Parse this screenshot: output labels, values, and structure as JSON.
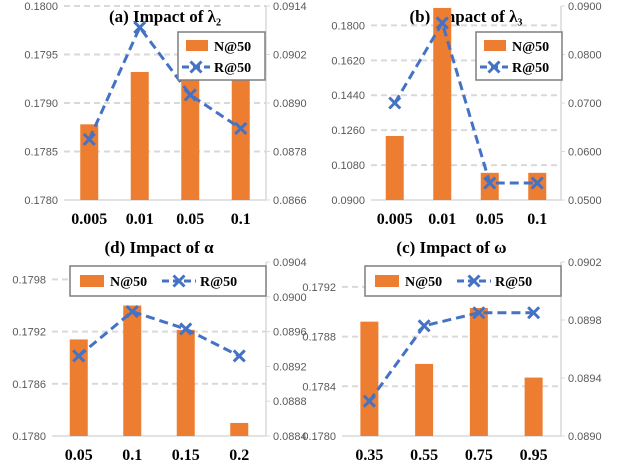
{
  "chart_data": [
    {
      "type": "bar",
      "title": "(a) Impact of λ₂",
      "categories": [
        "0.005",
        "0.01",
        "0.05",
        "0.1"
      ],
      "series": [
        {
          "name": "N@50",
          "axis": "left",
          "type": "bar",
          "values": [
            0.17878,
            0.17932,
            0.17951,
            0.17951
          ]
        },
        {
          "name": "R@50",
          "axis": "right",
          "type": "line",
          "values": [
            0.0881,
            0.09087,
            0.0892,
            0.08837
          ]
        }
      ],
      "ylim": [
        0.178,
        0.18
      ],
      "yticks": [
        "0.1780",
        "0.1785",
        "0.1790",
        "0.1795",
        "0.1800"
      ],
      "y2lim": [
        0.0866,
        0.0914
      ],
      "y2ticks": [
        "0.0866",
        "0.0878",
        "0.0890",
        "0.0902",
        "0.0914"
      ],
      "legend": "top-right",
      "grid": true
    },
    {
      "type": "bar",
      "title": "(b) Impact of λ₃",
      "categories": [
        "0.005",
        "0.01",
        "0.05",
        "0.1"
      ],
      "series": [
        {
          "name": "N@50",
          "axis": "left",
          "type": "bar",
          "values": [
            0.123,
            0.189,
            0.104,
            0.104
          ]
        },
        {
          "name": "R@50",
          "axis": "right",
          "type": "line",
          "values": [
            0.07,
            0.0865,
            0.0535,
            0.0535
          ]
        }
      ],
      "ylim": [
        0.09,
        0.19
      ],
      "yticks": [
        "0.0900",
        "0.1080",
        "0.1260",
        "0.1440",
        "0.1620",
        "0.1800"
      ],
      "y2lim": [
        0.05,
        0.09
      ],
      "y2ticks": [
        "0.0500",
        "0.0600",
        "0.0700",
        "0.0800",
        "0.0900"
      ],
      "legend": "top-right",
      "grid": true
    },
    {
      "type": "bar",
      "title": "(d) Impact of α",
      "categories": [
        "0.05",
        "0.1",
        "0.15",
        "0.2"
      ],
      "series": [
        {
          "name": "N@50",
          "axis": "left",
          "type": "bar",
          "values": [
            0.17911,
            0.1795,
            0.17922,
            0.17815
          ]
        },
        {
          "name": "R@50",
          "axis": "right",
          "type": "line",
          "values": [
            0.08932,
            0.08983,
            0.08963,
            0.08932
          ]
        }
      ],
      "ylim": [
        0.178,
        0.18
      ],
      "yticks": [
        "0.1780",
        "0.1786",
        "0.1792",
        "0.1798"
      ],
      "y2lim": [
        0.0884,
        0.0904
      ],
      "y2ticks": [
        "0.0884",
        "0.0888",
        "0.0892",
        "0.0896",
        "0.0900",
        "0.0904"
      ],
      "legend": "top",
      "grid": true
    },
    {
      "type": "bar",
      "title": "(c) Impact of ω",
      "categories": [
        "0.35",
        "0.55",
        "0.75",
        "0.95"
      ],
      "series": [
        {
          "name": "N@50",
          "axis": "left",
          "type": "bar",
          "values": [
            0.17892,
            0.17858,
            0.17903,
            0.17847
          ]
        },
        {
          "name": "R@50",
          "axis": "right",
          "type": "line",
          "values": [
            0.08924,
            0.08976,
            0.08985,
            0.08985
          ]
        }
      ],
      "ylim": [
        0.178,
        0.1794
      ],
      "yticks": [
        "0.1780",
        "0.1784",
        "0.1788",
        "0.1792"
      ],
      "y2lim": [
        0.089,
        0.0902
      ],
      "y2ticks": [
        "0.0890",
        "0.0894",
        "0.0898",
        "0.0902"
      ],
      "legend": "top",
      "grid": true
    }
  ],
  "colors": {
    "bar": "#ED7D31",
    "line": "#4472C4",
    "grid": "#D9D9D9",
    "tick_text": "#595959"
  }
}
